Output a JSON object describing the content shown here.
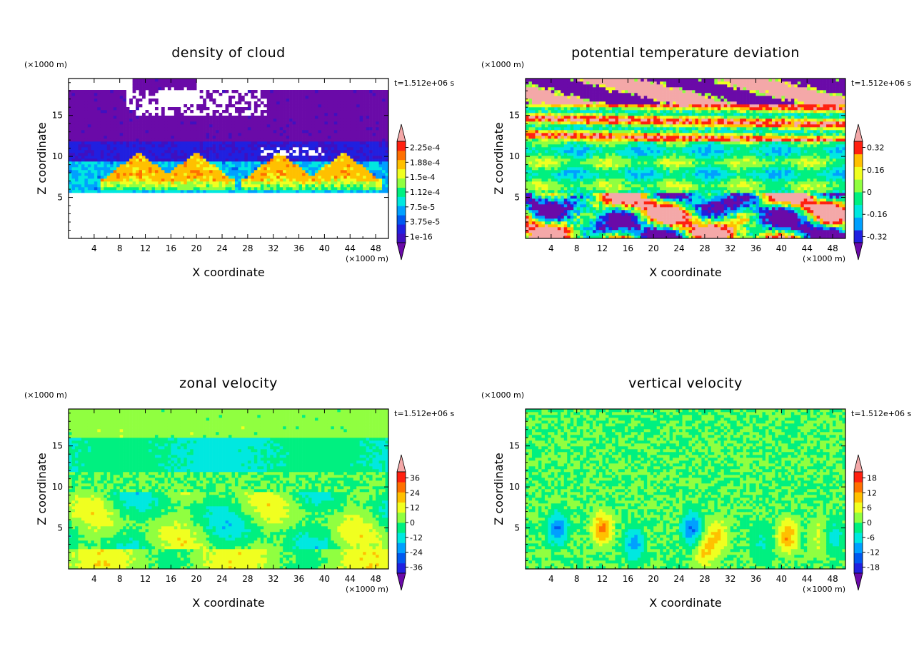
{
  "time_label": "t=1.512e+06 s",
  "unit_label": "(×1000 m)",
  "chart_data": [
    {
      "type": "heatmap",
      "title": "density of cloud",
      "xlabel": "X coordinate",
      "ylabel": "Z coordinate",
      "xunit": "(×1000 m)",
      "yunit": "(×1000 m)",
      "time": "t=1.512e+06 s",
      "xlim": [
        0,
        50
      ],
      "ylim": [
        0,
        19.5
      ],
      "xticks": [
        "4",
        "8",
        "12",
        "16",
        "20",
        "24",
        "28",
        "32",
        "36",
        "40",
        "44",
        "48"
      ],
      "yticks": [
        "5",
        "10",
        "15"
      ],
      "colorbar_labels": [
        "1e-16",
        "3.75e-5",
        "7.5e-5",
        "1.12e-4",
        "1.5e-4",
        "1.88e-4",
        "2.25e-4"
      ],
      "colors": [
        "#6a0aa8",
        "#3f10c0",
        "#2020e0",
        "#0058f0",
        "#00a0ff",
        "#00e8e0",
        "#00f080",
        "#90ff40",
        "#f0ff20",
        "#ffc000",
        "#ff7000",
        "#ff2010",
        "#f4a8a8"
      ],
      "features": {
        "cloud_bottom_km": 5.5,
        "cloud_top_km": 19.5,
        "max_density_band_km": [
          7,
          9.5
        ],
        "max_density": 0.000225
      }
    },
    {
      "type": "heatmap",
      "title": "potential temperature deviation",
      "xlabel": "X coordinate",
      "ylabel": "Z coordinate",
      "xunit": "(×1000 m)",
      "yunit": "(×1000 m)",
      "time": "t=1.512e+06 s",
      "xlim": [
        0,
        50
      ],
      "ylim": [
        0,
        19.5
      ],
      "xticks": [
        "4",
        "8",
        "12",
        "16",
        "20",
        "24",
        "28",
        "32",
        "36",
        "40",
        "44",
        "48"
      ],
      "yticks": [
        "5",
        "10",
        "15"
      ],
      "colorbar_labels": [
        "-0.32",
        "-0.16",
        "0",
        "0.16",
        "0.32"
      ],
      "colors": [
        "#6a0aa8",
        "#2020e0",
        "#00a0ff",
        "#00e8e0",
        "#00f080",
        "#90ff40",
        "#f0ff20",
        "#ffc000",
        "#ff2010",
        "#f4a8a8"
      ],
      "range": [
        -0.4,
        0.4
      ]
    },
    {
      "type": "heatmap",
      "title": "zonal velocity",
      "xlabel": "X coordinate",
      "ylabel": "Z coordinate",
      "xunit": "(×1000 m)",
      "yunit": "(×1000 m)",
      "time": "t=1.512e+06 s",
      "xlim": [
        0,
        50
      ],
      "ylim": [
        0,
        19.5
      ],
      "xticks": [
        "4",
        "8",
        "12",
        "16",
        "20",
        "24",
        "28",
        "32",
        "36",
        "40",
        "44",
        "48"
      ],
      "yticks": [
        "5",
        "10",
        "15"
      ],
      "colorbar_labels": [
        "-36",
        "-24",
        "-12",
        "0",
        "12",
        "24",
        "36"
      ],
      "colors": [
        "#6a0aa8",
        "#2020e0",
        "#0058f0",
        "#00a0ff",
        "#00e8e0",
        "#00f080",
        "#90ff40",
        "#f0ff20",
        "#ffc000",
        "#ff7000",
        "#ff2010",
        "#f4a8a8"
      ],
      "range": [
        -42,
        42
      ]
    },
    {
      "type": "heatmap",
      "title": "vertical velocity",
      "xlabel": "X coordinate",
      "ylabel": "Z coordinate",
      "xunit": "(×1000 m)",
      "yunit": "(×1000 m)",
      "time": "t=1.512e+06 s",
      "xlim": [
        0,
        50
      ],
      "ylim": [
        0,
        19.5
      ],
      "xticks": [
        "4",
        "8",
        "12",
        "16",
        "20",
        "24",
        "28",
        "32",
        "36",
        "40",
        "44",
        "48"
      ],
      "yticks": [
        "5",
        "10",
        "15"
      ],
      "colorbar_labels": [
        "-18",
        "-12",
        "-6",
        "0",
        "6",
        "12",
        "18"
      ],
      "colors": [
        "#6a0aa8",
        "#2020e0",
        "#0058f0",
        "#00a0ff",
        "#00e8e0",
        "#00f080",
        "#90ff40",
        "#f0ff20",
        "#ffc000",
        "#ff7000",
        "#ff2010",
        "#f4a8a8"
      ],
      "range": [
        -21,
        21
      ]
    }
  ]
}
